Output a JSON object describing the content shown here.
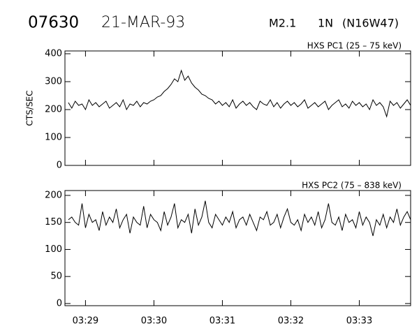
{
  "header": {
    "id": "07630",
    "date": "21-MAR-93",
    "class": "M2.1",
    "importance": "1N",
    "location": "(N16W47)"
  },
  "chart_data": [
    {
      "type": "line",
      "title": "HXS PC1 (25 – 75 keV)",
      "y_label": "CTS/SEC",
      "color": "#000000",
      "xlim": [
        208.7,
        213.75
      ],
      "ylim": [
        0,
        410
      ],
      "yticks": [
        0,
        100,
        200,
        300,
        400
      ],
      "xticks": [
        209,
        210,
        211,
        212,
        213
      ],
      "x": [
        208.75,
        208.8,
        208.85,
        208.9,
        208.95,
        209,
        209.05,
        209.1,
        209.15,
        209.2,
        209.25,
        209.3,
        209.35,
        209.4,
        209.45,
        209.5,
        209.55,
        209.6,
        209.65,
        209.7,
        209.75,
        209.8,
        209.85,
        209.9,
        209.95,
        210,
        210.05,
        210.1,
        210.15,
        210.2,
        210.25,
        210.3,
        210.35,
        210.4,
        210.45,
        210.5,
        210.55,
        210.6,
        210.65,
        210.7,
        210.75,
        210.8,
        210.85,
        210.9,
        210.95,
        211,
        211.05,
        211.1,
        211.15,
        211.2,
        211.25,
        211.3,
        211.35,
        211.4,
        211.45,
        211.5,
        211.55,
        211.6,
        211.65,
        211.7,
        211.75,
        211.8,
        211.85,
        211.9,
        211.95,
        212,
        212.05,
        212.1,
        212.15,
        212.2,
        212.25,
        212.3,
        212.35,
        212.4,
        212.45,
        212.5,
        212.55,
        212.6,
        212.65,
        212.7,
        212.75,
        212.8,
        212.85,
        212.9,
        212.95,
        213,
        213.05,
        213.1,
        213.15,
        213.2,
        213.25,
        213.3,
        213.35,
        213.4,
        213.45,
        213.5,
        213.55,
        213.6,
        213.65,
        213.7,
        213.75
      ],
      "values": [
        225,
        205,
        230,
        215,
        220,
        200,
        235,
        215,
        225,
        210,
        220,
        230,
        205,
        215,
        225,
        210,
        235,
        200,
        220,
        215,
        230,
        210,
        225,
        220,
        230,
        235,
        245,
        250,
        265,
        275,
        290,
        310,
        300,
        340,
        305,
        320,
        295,
        280,
        270,
        255,
        250,
        240,
        235,
        220,
        230,
        215,
        225,
        210,
        235,
        205,
        220,
        230,
        215,
        225,
        210,
        200,
        230,
        220,
        215,
        235,
        210,
        225,
        205,
        220,
        230,
        215,
        225,
        210,
        220,
        235,
        205,
        215,
        225,
        210,
        220,
        230,
        200,
        215,
        225,
        235,
        210,
        220,
        205,
        230,
        215,
        225,
        210,
        220,
        200,
        235,
        215,
        225,
        210,
        175,
        230,
        215,
        225,
        205,
        220,
        235,
        215
      ]
    },
    {
      "type": "line",
      "title": "HXS PC2 (75 – 838 keV)",
      "color": "#000000",
      "xlim": [
        208.7,
        213.75
      ],
      "ylim": [
        -4,
        209
      ],
      "yticks": [
        0,
        50,
        100,
        150,
        200
      ],
      "xticks": [
        {
          "value": 209,
          "label": "03:29"
        },
        {
          "value": 210,
          "label": "03:30"
        },
        {
          "value": 211,
          "label": "03:31"
        },
        {
          "value": 212,
          "label": "03:32"
        },
        {
          "value": 213,
          "label": "03:33"
        }
      ],
      "x": [
        208.75,
        208.8,
        208.85,
        208.9,
        208.95,
        209,
        209.05,
        209.1,
        209.15,
        209.2,
        209.25,
        209.3,
        209.35,
        209.4,
        209.45,
        209.5,
        209.55,
        209.6,
        209.65,
        209.7,
        209.75,
        209.8,
        209.85,
        209.9,
        209.95,
        210,
        210.05,
        210.1,
        210.15,
        210.2,
        210.25,
        210.3,
        210.35,
        210.4,
        210.45,
        210.5,
        210.55,
        210.6,
        210.65,
        210.7,
        210.75,
        210.8,
        210.85,
        210.9,
        210.95,
        211,
        211.05,
        211.1,
        211.15,
        211.2,
        211.25,
        211.3,
        211.35,
        211.4,
        211.45,
        211.5,
        211.55,
        211.6,
        211.65,
        211.7,
        211.75,
        211.8,
        211.85,
        211.9,
        211.95,
        212,
        212.05,
        212.1,
        212.15,
        212.2,
        212.25,
        212.3,
        212.35,
        212.4,
        212.45,
        212.5,
        212.55,
        212.6,
        212.65,
        212.7,
        212.75,
        212.8,
        212.85,
        212.9,
        212.95,
        213,
        213.05,
        213.1,
        213.15,
        213.2,
        213.25,
        213.3,
        213.35,
        213.4,
        213.45,
        213.5,
        213.55,
        213.6,
        213.65,
        213.7,
        213.75
      ],
      "values": [
        155,
        160,
        150,
        145,
        185,
        140,
        165,
        150,
        155,
        135,
        170,
        145,
        160,
        150,
        175,
        140,
        155,
        165,
        130,
        160,
        150,
        145,
        180,
        140,
        165,
        155,
        150,
        135,
        170,
        145,
        160,
        185,
        140,
        155,
        150,
        165,
        130,
        175,
        145,
        160,
        190,
        150,
        140,
        165,
        155,
        145,
        160,
        150,
        170,
        140,
        155,
        160,
        145,
        165,
        150,
        135,
        160,
        155,
        170,
        145,
        150,
        165,
        140,
        160,
        175,
        150,
        145,
        155,
        135,
        165,
        150,
        160,
        145,
        170,
        140,
        155,
        185,
        150,
        145,
        160,
        135,
        165,
        150,
        155,
        140,
        170,
        145,
        160,
        150,
        125,
        155,
        145,
        165,
        140,
        160,
        150,
        175,
        145,
        160,
        170,
        155
      ]
    }
  ]
}
